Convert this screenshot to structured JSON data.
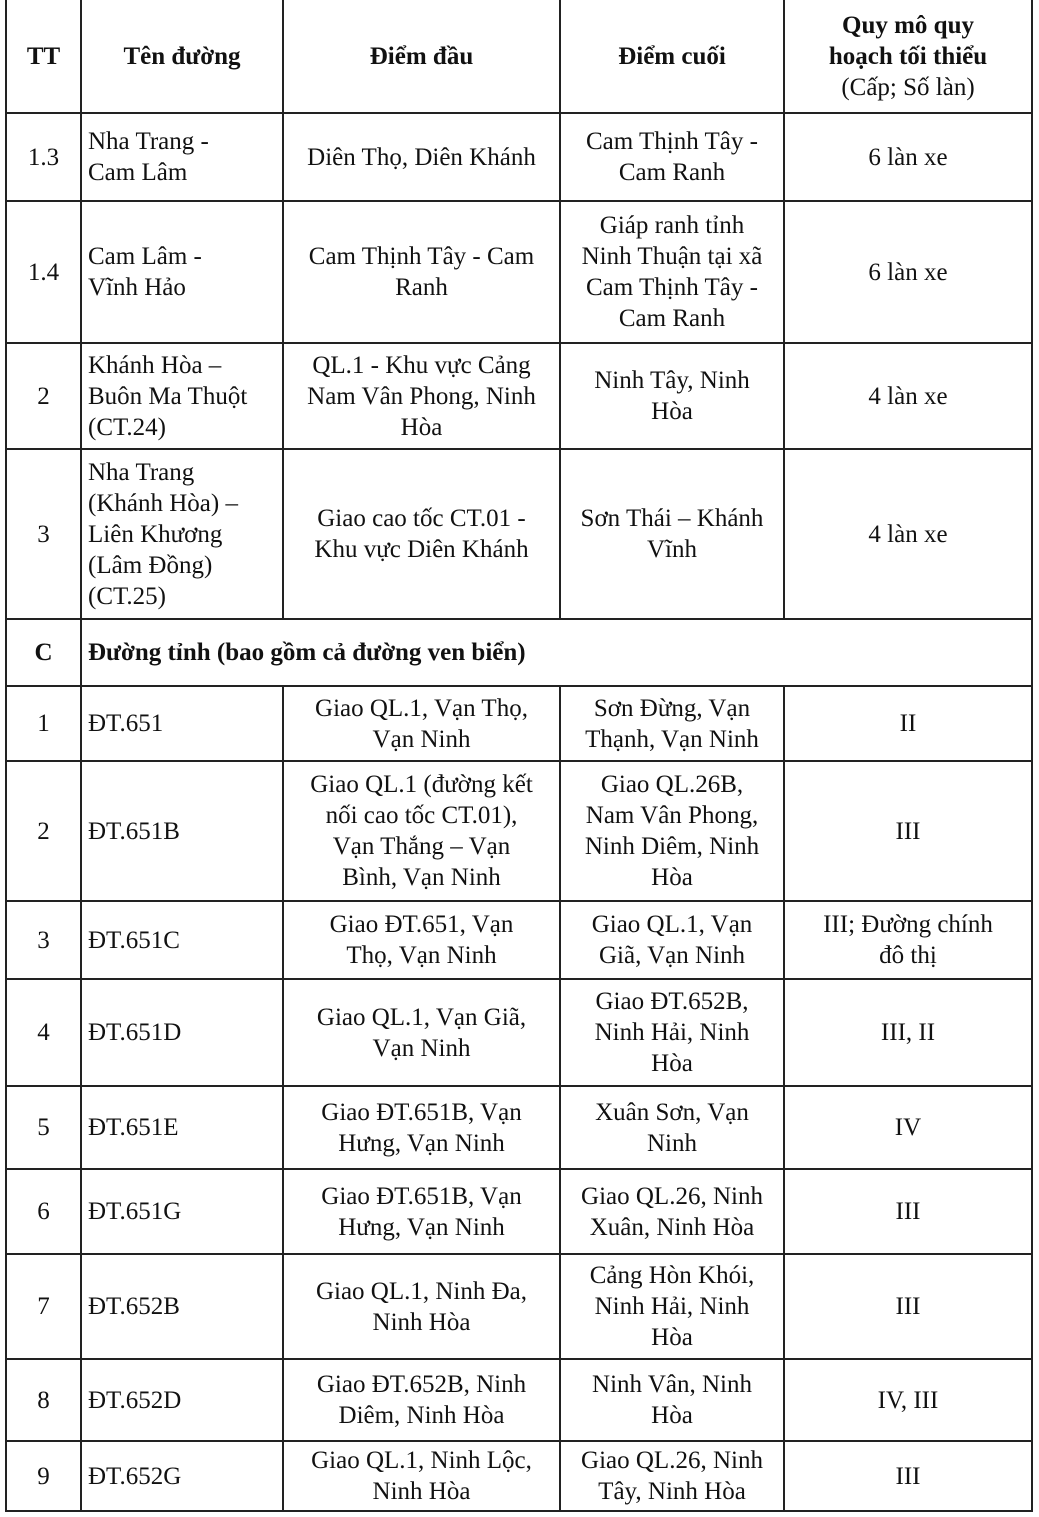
{
  "header": {
    "tt": "TT",
    "ten_duong": "Tên đường",
    "diem_dau": "Điểm đầu",
    "diem_cuoi": "Điểm cuối",
    "quy_mo": "Quy mô quy\nhoạch tối thiểu",
    "quy_mo_sub": "(Cấp; Số làn)"
  },
  "rows": [
    {
      "tt": "1.3",
      "ten": "Nha Trang -\nCam Lâm",
      "dau": "Diên Thọ, Diên Khánh",
      "cuoi": "Cam Thịnh Tây -\nCam Ranh",
      "quy_mo": "6 làn xe"
    },
    {
      "tt": "1.4",
      "ten": "Cam Lâm -\nVĩnh Hảo",
      "dau": "Cam Thịnh Tây - Cam\nRanh",
      "cuoi": "Giáp ranh tỉnh\nNinh Thuận tại xã\nCam Thịnh Tây -\nCam Ranh",
      "quy_mo": "6 làn xe"
    },
    {
      "tt": "2",
      "ten": "Khánh Hòa –\nBuôn Ma Thuột\n(CT.24)",
      "dau": "QL.1 - Khu vực Cảng\nNam Vân Phong, Ninh\nHòa",
      "cuoi": "Ninh Tây, Ninh\nHòa",
      "quy_mo": "4 làn xe"
    },
    {
      "tt": "3",
      "ten": "Nha Trang\n(Khánh Hòa) –\nLiên Khương\n(Lâm Đồng)\n(CT.25)",
      "dau": "Giao cao tốc CT.01 -\nKhu vực Diên Khánh",
      "cuoi": "Sơn Thái – Khánh\nVĩnh",
      "quy_mo": "4 làn xe"
    },
    {
      "section": true,
      "tt": "C",
      "ten": "Đường tỉnh (bao gồm cả đường ven biển)"
    },
    {
      "tt": "1",
      "ten": "ĐT.651",
      "dau": "Giao QL.1, Vạn Thọ,\nVạn Ninh",
      "cuoi": "Sơn Đừng, Vạn\nThạnh, Vạn Ninh",
      "quy_mo": "II"
    },
    {
      "tt": "2",
      "ten": "ĐT.651B",
      "dau": "Giao QL.1 (đường kết\nnối cao tốc CT.01),\nVạn Thắng – Vạn\nBình, Vạn Ninh",
      "cuoi": "Giao QL.26B,\nNam Vân Phong,\nNinh Diêm, Ninh\nHòa",
      "quy_mo": "III"
    },
    {
      "tt": "3",
      "ten": "ĐT.651C",
      "dau": "Giao ĐT.651, Vạn\nThọ, Vạn Ninh",
      "cuoi": "Giao QL.1, Vạn\nGiã, Vạn Ninh",
      "quy_mo": "III; Đường chính\nđô thị"
    },
    {
      "tt": "4",
      "ten": "ĐT.651D",
      "dau": "Giao QL.1, Vạn Giã,\nVạn Ninh",
      "cuoi": "Giao ĐT.652B,\nNinh Hải, Ninh\nHòa",
      "quy_mo": "III, II"
    },
    {
      "tt": "5",
      "ten": "ĐT.651E",
      "dau": "Giao ĐT.651B, Vạn\nHưng, Vạn Ninh",
      "cuoi": "Xuân Sơn, Vạn\nNinh",
      "quy_mo": "IV"
    },
    {
      "tt": "6",
      "ten": "ĐT.651G",
      "dau": "Giao ĐT.651B, Vạn\nHưng, Vạn Ninh",
      "cuoi": "Giao QL.26, Ninh\nXuân, Ninh Hòa",
      "quy_mo": "III"
    },
    {
      "tt": "7",
      "ten": "ĐT.652B",
      "dau": "Giao QL.1, Ninh Đa,\nNinh Hòa",
      "cuoi": "Cảng Hòn Khói,\nNinh Hải, Ninh\nHòa",
      "quy_mo": "III"
    },
    {
      "tt": "8",
      "ten": "ĐT.652D",
      "dau": "Giao ĐT.652B, Ninh\nDiêm, Ninh Hòa",
      "cuoi": "Ninh Vân, Ninh\nHòa",
      "quy_mo": "IV, III"
    },
    {
      "tt": "9",
      "ten": "ĐT.652G",
      "dau": "Giao QL.1, Ninh Lộc,\nNinh Hòa",
      "cuoi": "Giao QL.26, Ninh\nTây, Ninh Hòa",
      "quy_mo": "III"
    }
  ]
}
